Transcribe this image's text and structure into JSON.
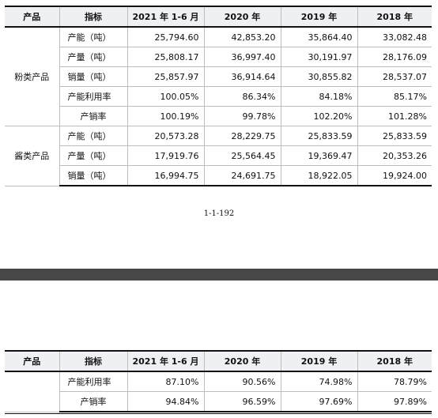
{
  "columns": [
    "产品",
    "指标",
    "2021 年 1-6 月",
    "2020 年",
    "2019 年",
    "2018 年"
  ],
  "table_top": {
    "groups": [
      {
        "category": "粉类产品",
        "rows": [
          {
            "indicator": "产能（吨）",
            "values": [
              "25,794.60",
              "42,853.20",
              "35,864.40",
              "33,082.48"
            ]
          },
          {
            "indicator": "产量（吨）",
            "values": [
              "25,808.17",
              "36,997.40",
              "30,191.97",
              "28,176.09"
            ]
          },
          {
            "indicator": "销量（吨）",
            "values": [
              "25,857.97",
              "36,914.64",
              "30,855.82",
              "28,537.07"
            ]
          },
          {
            "indicator": "产能利用率",
            "values": [
              "100.05%",
              "86.34%",
              "84.18%",
              "85.17%"
            ]
          },
          {
            "indicator": "产销率",
            "values": [
              "100.19%",
              "99.78%",
              "102.20%",
              "101.28%"
            ]
          }
        ]
      },
      {
        "category": "酱类产品",
        "rows": [
          {
            "indicator": "产能（吨）",
            "values": [
              "20,573.28",
              "28,229.75",
              "25,833.59",
              "25,833.59"
            ]
          },
          {
            "indicator": "产量（吨）",
            "values": [
              "17,919.76",
              "25,564.45",
              "19,369.47",
              "20,353.26"
            ]
          },
          {
            "indicator": "销量（吨）",
            "values": [
              "16,994.75",
              "24,691.75",
              "18,922.05",
              "19,924.00"
            ]
          }
        ]
      }
    ]
  },
  "page_number": "1-1-192",
  "table_bottom": {
    "rows": [
      {
        "indicator": "产能利用率",
        "values": [
          "87.10%",
          "90.56%",
          "74.98%",
          "78.79%"
        ]
      },
      {
        "indicator": "产销率",
        "values": [
          "94.84%",
          "96.59%",
          "97.69%",
          "97.89%"
        ]
      }
    ]
  }
}
